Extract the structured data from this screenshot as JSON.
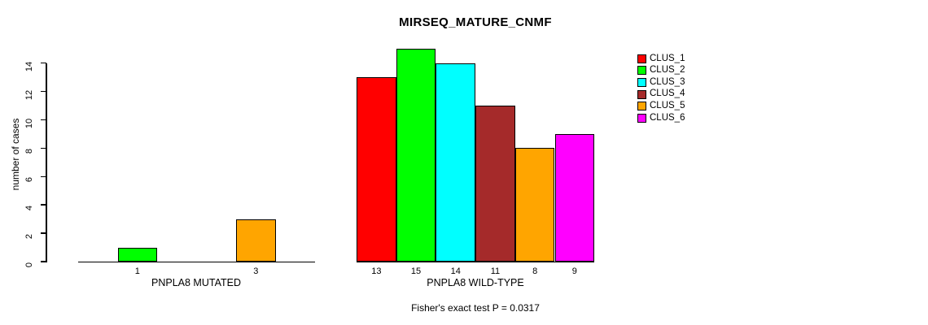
{
  "chart_data": {
    "type": "bar",
    "title": "MIRSEQ_MATURE_CNMF",
    "ylabel": "number of cases",
    "ylim": [
      0,
      14
    ],
    "yticks": [
      0,
      2,
      4,
      6,
      8,
      10,
      12,
      14
    ],
    "grid": false,
    "categories": [
      "CLUS_1",
      "CLUS_2",
      "CLUS_3",
      "CLUS_4",
      "CLUS_5",
      "CLUS_6"
    ],
    "cluster_colors": [
      "#FF0000",
      "#00FF00",
      "#00FFFF",
      "#A52A2A",
      "#FFA500",
      "#FF00FF"
    ],
    "legend": {
      "position": "right",
      "entries": [
        {
          "label": "CLUS_1",
          "color": "#FF0000"
        },
        {
          "label": "CLUS_2",
          "color": "#00FF00"
        },
        {
          "label": "CLUS_3",
          "color": "#00FFFF"
        },
        {
          "label": "CLUS_4",
          "color": "#A52A2A"
        },
        {
          "label": "CLUS_5",
          "color": "#FFA500"
        },
        {
          "label": "CLUS_6",
          "color": "#FF00FF"
        }
      ]
    },
    "groups": [
      {
        "label": "PNPLA8 MUTATED",
        "values": [
          0,
          1,
          0,
          0,
          3,
          0
        ],
        "bar_labels": [
          "",
          "1",
          "",
          "",
          "3",
          ""
        ]
      },
      {
        "label": "PNPLA8 WILD-TYPE",
        "values": [
          13,
          15,
          14,
          11,
          8,
          9
        ],
        "bar_labels": [
          "13",
          "15",
          "14",
          "11",
          "8",
          "9"
        ]
      }
    ],
    "annotation": "Fisher's exact test P = 0.0317"
  }
}
